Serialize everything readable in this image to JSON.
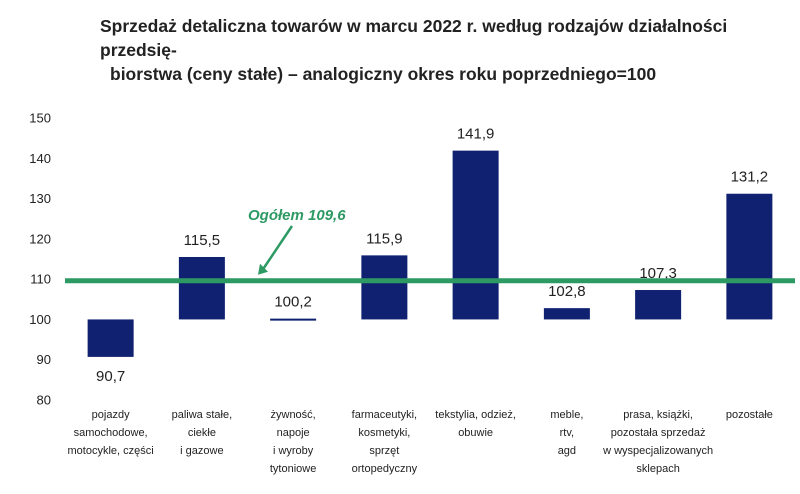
{
  "title_line1": "Sprzedaż detaliczna towarów w marcu 2022 r. według rodzajów działalności przedsię-",
  "title_line2": "biorstwa (ceny stałe) – analogiczny okres roku poprzedniego=100",
  "colors": {
    "bar": "#0f2170",
    "reference_line": "#2e9a63",
    "text": "#222222"
  },
  "chart_data": {
    "type": "bar",
    "title": "Sprzedaż detaliczna towarów w marcu 2022 r. według rodzajów działalności przedsiębiorstwa (ceny stałe) – analogiczny okres roku poprzedniego=100",
    "categories": [
      [
        "pojazdy",
        "samochodowe,",
        "motocykle, części"
      ],
      [
        "paliwa stałe,",
        "ciekłe",
        "i gazowe"
      ],
      [
        "żywność,",
        "napoje",
        "i wyroby",
        "tytoniowe"
      ],
      [
        "farmaceutyki,",
        "kosmetyki,",
        "sprzęt",
        "ortopedyczny"
      ],
      [
        "tekstylia, odzież,",
        "obuwie"
      ],
      [
        "meble,",
        "rtv,",
        "agd"
      ],
      [
        "prasa, książki,",
        "pozostała sprzedaż",
        "w wyspecjalizowanych",
        "sklepach"
      ],
      [
        "pozostałe"
      ]
    ],
    "values": [
      90.7,
      115.5,
      100.2,
      115.9,
      141.9,
      102.8,
      107.3,
      131.2
    ],
    "value_labels": [
      "90,7",
      "115,5",
      "100,2",
      "115,9",
      "141,9",
      "102,8",
      "107,3",
      "131,2"
    ],
    "baseline": 100,
    "ylim": [
      80,
      150
    ],
    "yticks": [
      80,
      90,
      100,
      110,
      120,
      130,
      140,
      150
    ],
    "reference_line": {
      "value": 109.6,
      "label": "Ogółem 109,6"
    },
    "grid": false,
    "legend": "none"
  }
}
